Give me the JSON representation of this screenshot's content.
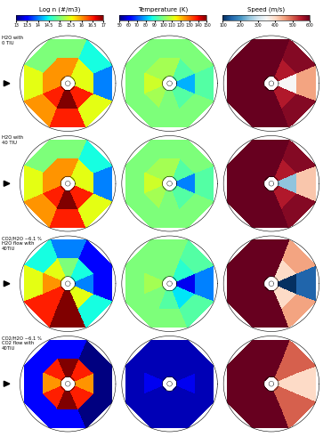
{
  "chart_data": {
    "type": "polar_heatmap_grid",
    "tick_labels": false,
    "columns": [
      {
        "title": "Log n (#/m3)",
        "range": [
          13,
          17
        ],
        "ticks": [
          13,
          13.5,
          14,
          14.5,
          15,
          15.5,
          16,
          16.5,
          17
        ]
      },
      {
        "title": "Temperature (K)",
        "range": [
          50,
          150
        ],
        "ticks": [
          50,
          60,
          70,
          80,
          90,
          100,
          110,
          120,
          130,
          140,
          150
        ]
      },
      {
        "title": "Speed (m/s)",
        "range": [
          100,
          600
        ],
        "ticks": [
          100,
          200,
          300,
          400,
          500,
          600
        ]
      }
    ],
    "rows": [
      {
        "label": "H2O with\n0 TIU",
        "panels": [
          {
            "cells": [
              [
                15.5,
                15.5,
                16,
                16,
                16,
                16.5,
                17,
                16.5
              ],
              [
                14,
                14.5,
                15,
                15,
                15.5,
                16,
                16.5,
                15.5
              ]
            ]
          },
          {
            "cells": [
              [
                80,
                95,
                105,
                105,
                110,
                105,
                100,
                95
              ],
              [
                95,
                100,
                100,
                100,
                100,
                100,
                100,
                100
              ]
            ]
          },
          {
            "cells": [
              [
                350,
                550,
                600,
                600,
                600,
                600,
                600,
                550
              ],
              [
                450,
                580,
                600,
                600,
                600,
                600,
                600,
                580
              ]
            ]
          }
        ]
      },
      {
        "label": "H2O with\n40 TIU",
        "panels": [
          {
            "cells": [
              [
                15.5,
                15.5,
                16,
                16,
                16,
                16.5,
                17,
                16.5
              ],
              [
                14,
                14.5,
                15,
                15,
                15.5,
                16,
                16.5,
                15.5
              ]
            ]
          },
          {
            "cells": [
              [
                75,
                95,
                105,
                105,
                110,
                105,
                100,
                95
              ],
              [
                95,
                100,
                100,
                100,
                100,
                100,
                100,
                100
              ]
            ]
          },
          {
            "cells": [
              [
                250,
                550,
                600,
                600,
                600,
                600,
                600,
                550
              ],
              [
                420,
                580,
                600,
                600,
                600,
                600,
                600,
                580
              ]
            ]
          }
        ]
      },
      {
        "label": "CO2/H2O ~6.1 %\nH2O flow with\n40TIU",
        "panels": [
          {
            "cells": [
              [
                14,
                14.5,
                15,
                15.5,
                16,
                16.5,
                17,
                15.5
              ],
              [
                13.5,
                13.5,
                14,
                14.5,
                15.5,
                16.5,
                17,
                14.5
              ]
            ]
          },
          {
            "cells": [
              [
                60,
                90,
                100,
                100,
                105,
                100,
                95,
                85
              ],
              [
                75,
                95,
                100,
                100,
                100,
                100,
                100,
                95
              ]
            ]
          },
          {
            "cells": [
              [
                100,
                400,
                600,
                600,
                600,
                600,
                600,
                400
              ],
              [
                150,
                450,
                600,
                600,
                600,
                600,
                600,
                450
              ]
            ]
          }
        ]
      },
      {
        "label": "CO2/H2O ~6.1 %\nCO2 flow with\n40TIU",
        "panels": [
          {
            "cells": [
              [
                16,
                16.5,
                17,
                16.5,
                16,
                16.5,
                17,
                16.5
              ],
              [
                13,
                13,
                13.5,
                13.5,
                13.5,
                13.5,
                13.5,
                13
              ]
            ]
          },
          {
            "cells": [
              [
                60,
                55,
                55,
                55,
                60,
                55,
                55,
                55
              ],
              [
                55,
                55,
                55,
                55,
                55,
                55,
                55,
                55
              ]
            ]
          },
          {
            "cells": [
              [
                400,
                500,
                600,
                600,
                600,
                600,
                600,
                500
              ],
              [
                400,
                500,
                600,
                600,
                600,
                600,
                600,
                500
              ]
            ]
          }
        ]
      }
    ]
  }
}
